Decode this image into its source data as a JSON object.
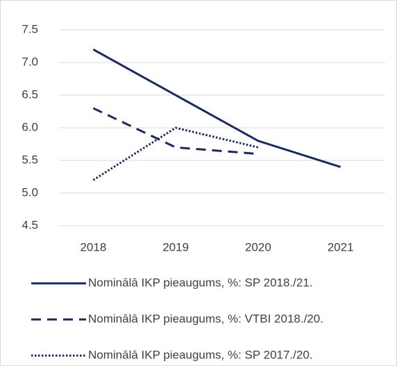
{
  "chart_data": {
    "type": "line",
    "categories": [
      "2018",
      "2019",
      "2020",
      "2021"
    ],
    "series": [
      {
        "name": "Nominālā IKP pieaugums, %: SP 2018./21.",
        "color": "#1b2a5e",
        "line_style": "solid",
        "values": [
          7.2,
          6.5,
          5.8,
          5.4
        ]
      },
      {
        "name": "Nominālā IKP pieaugums, %: VTBI 2018./20.",
        "color": "#1b2a5e",
        "line_style": "dashed",
        "values": [
          6.3,
          5.7,
          5.6,
          null
        ]
      },
      {
        "name": "Nominālā IKP pieaugums, %: SP 2017./20.",
        "color": "#1b2a5e",
        "line_style": "dotted",
        "values": [
          5.2,
          6.0,
          5.7,
          null
        ]
      }
    ],
    "ylim": [
      4.5,
      7.5
    ],
    "yticks": [
      4.5,
      {
        "value": 5,
        "label": "5.0"
      },
      5.5,
      {
        "value": 6,
        "label": "6.0"
      },
      6.5,
      {
        "value": 7,
        "label": "7.0"
      },
      7.5
    ],
    "grid": true,
    "legend": "bottom"
  }
}
